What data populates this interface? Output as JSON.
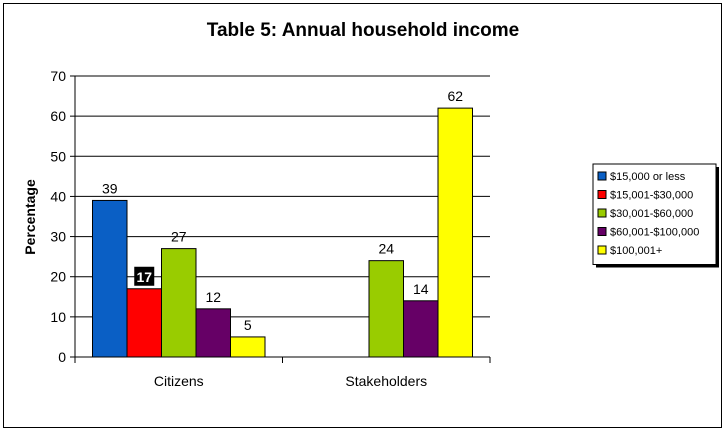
{
  "chart_data": {
    "type": "bar",
    "title": "Table 5: Annual household income",
    "ylabel": "Percentage",
    "xlabel": "",
    "ylim": [
      0,
      70
    ],
    "yticks": [
      0,
      10,
      20,
      30,
      40,
      50,
      60,
      70
    ],
    "categories": [
      "Citizens",
      "Stakeholders"
    ],
    "series": [
      {
        "name": "$15,000 or less",
        "color": "#0a5fc5",
        "values": [
          39,
          null
        ]
      },
      {
        "name": "$15,001-$30,000",
        "color": "#ff0000",
        "values": [
          17,
          null
        ]
      },
      {
        "name": "$30,001-$60,000",
        "color": "#99cc00",
        "values": [
          27,
          24
        ]
      },
      {
        "name": "$60,001-$100,000",
        "color": "#660066",
        "values": [
          12,
          14
        ]
      },
      {
        "name": "$100,001+",
        "color": "#ffff00",
        "values": [
          5,
          62
        ]
      }
    ],
    "highlighted_label": {
      "series": 1,
      "category": 0
    },
    "grid": true,
    "legend_position": "right"
  }
}
